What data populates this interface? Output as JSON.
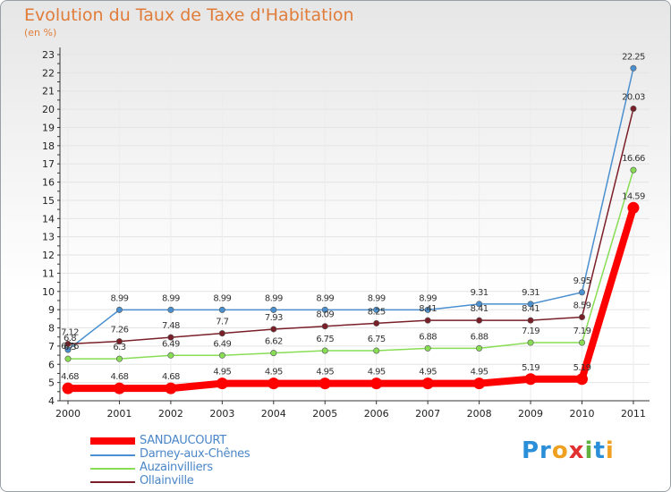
{
  "chart_data": {
    "type": "line",
    "title": "Evolution du Taux de Taxe d'Habitation",
    "ylabel": "(en %)",
    "ylim": [
      4,
      23
    ],
    "yticks": [
      "4",
      "5",
      "6",
      "7",
      "8",
      "9",
      "10",
      "11",
      "12",
      "13",
      "14",
      "15",
      "16",
      "17",
      "18",
      "19",
      "20",
      "21",
      "22",
      "23"
    ],
    "categories": [
      "2000",
      "2001",
      "2002",
      "2003",
      "2004",
      "2005",
      "2006",
      "2007",
      "2008",
      "2009",
      "2010",
      "2011"
    ],
    "series": [
      {
        "name": "SANDAUCOURT",
        "color": "#ff0000",
        "values": [
          4.68,
          4.68,
          4.68,
          4.95,
          4.95,
          4.95,
          4.95,
          4.95,
          4.95,
          5.19,
          5.19,
          14.59
        ],
        "labels": [
          "4.68",
          "4.68",
          "4.68",
          "4.95",
          "4.95",
          "4.95",
          "4.95",
          "4.95",
          "4.95",
          "5.19",
          "5.19",
          "14.59"
        ]
      },
      {
        "name": "Darney-aux-Chênes",
        "color": "#4a90d0",
        "values": [
          6.8,
          8.99,
          8.99,
          8.99,
          8.99,
          8.99,
          8.99,
          8.99,
          9.31,
          9.31,
          9.95,
          22.25
        ],
        "labels": [
          "6.8",
          "8.99",
          "8.99",
          "8.99",
          "8.99",
          "8.99",
          "8.99",
          "8.99",
          "9.31",
          "9.31",
          "9.95",
          "22.25"
        ]
      },
      {
        "name": "Auzainvilliers",
        "color": "#88dd55",
        "values": [
          6.3,
          6.3,
          6.49,
          6.49,
          6.62,
          6.75,
          6.75,
          6.88,
          6.88,
          7.19,
          7.19,
          16.66
        ],
        "labels": [
          "6.3",
          "6.3",
          "6.49",
          "6.49",
          "6.62",
          "6.75",
          "6.75",
          "6.88",
          "6.88",
          "7.19",
          "7.19",
          "16.66"
        ]
      },
      {
        "name": "Ollainville",
        "color": "#7a1f28",
        "values": [
          7.12,
          7.26,
          7.48,
          7.7,
          7.93,
          8.09,
          8.25,
          8.41,
          8.41,
          8.41,
          8.59,
          20.03
        ],
        "labels": [
          "7.12",
          "7.26",
          "7.48",
          "7.7",
          "7.93",
          "8.09",
          "8.25",
          "8.41",
          "8.41",
          "8.41",
          "8.59",
          "20.03"
        ]
      }
    ],
    "extra_labels": [
      "6.76"
    ]
  },
  "logo": {
    "p1": "Pr",
    "o": "o",
    "x": "x",
    "i1": "i",
    "t": "t",
    "i2": "i"
  }
}
